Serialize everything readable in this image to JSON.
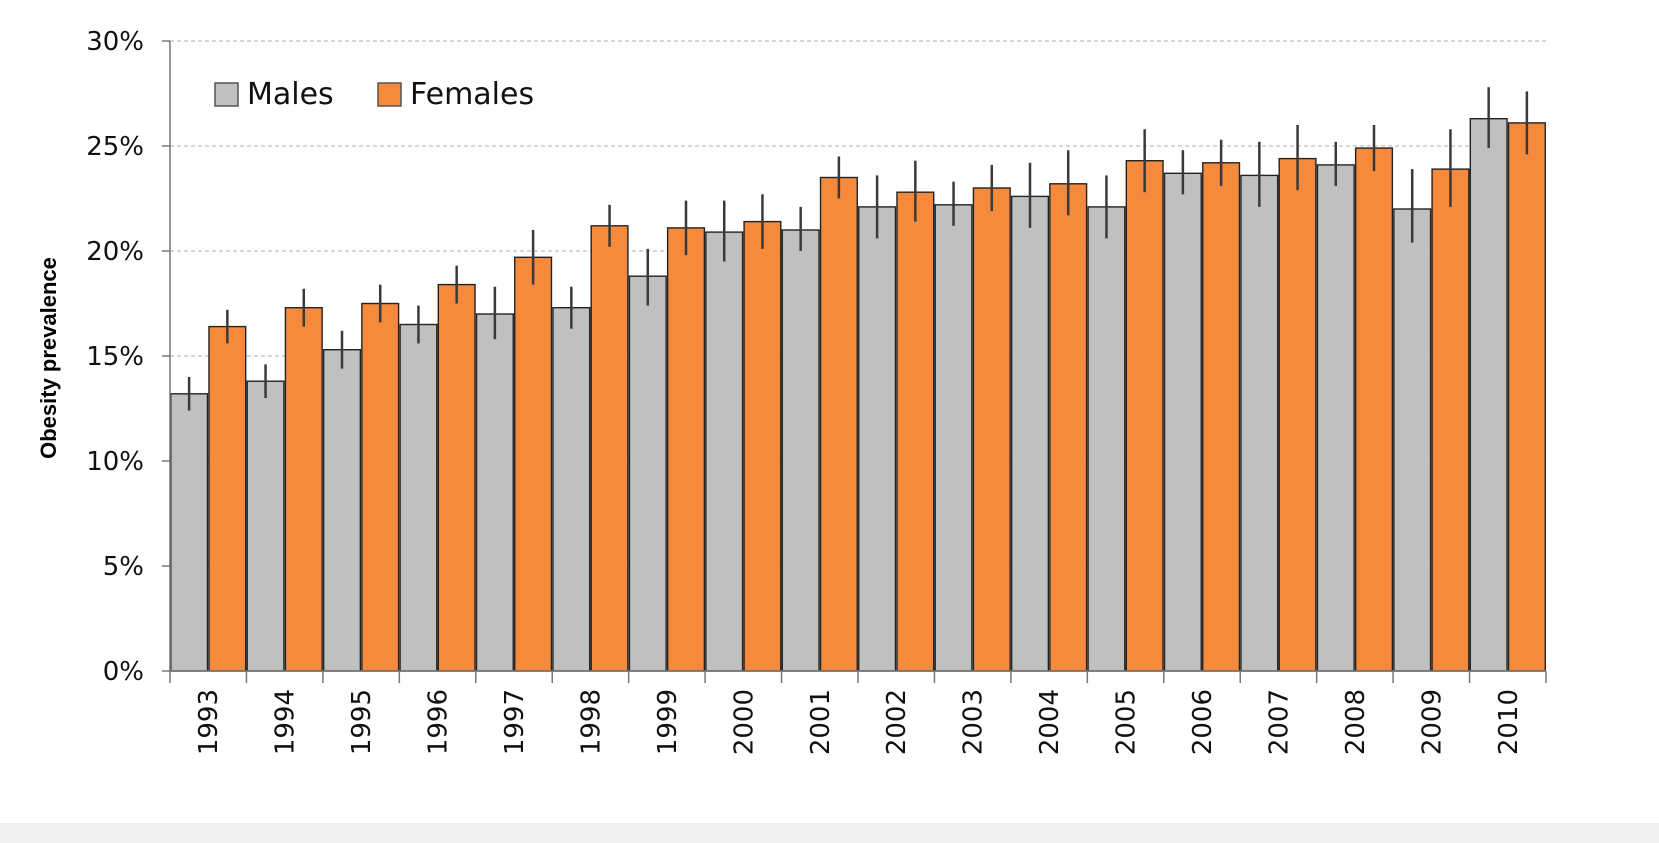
{
  "chart_data": {
    "type": "bar",
    "ylabel": "Obesity prevalence",
    "xlabel": "",
    "ylim": [
      0,
      30
    ],
    "yticks": [
      "0%",
      "5%",
      "10%",
      "15%",
      "20%",
      "25%",
      "30%"
    ],
    "categories": [
      "1993",
      "1994",
      "1995",
      "1996",
      "1997",
      "1998",
      "1999",
      "2000",
      "2001",
      "2002",
      "2003",
      "2004",
      "2005",
      "2006",
      "2007",
      "2008",
      "2009",
      "2010"
    ],
    "series": [
      {
        "name": "Males",
        "color": "#c0c0c0",
        "values": [
          13.2,
          13.8,
          15.3,
          16.5,
          17.0,
          17.3,
          18.8,
          20.9,
          21.0,
          22.1,
          22.2,
          22.6,
          22.1,
          23.7,
          23.6,
          24.1,
          22.0,
          26.3
        ],
        "error_low": [
          12.4,
          13.0,
          14.4,
          15.6,
          15.8,
          16.3,
          17.4,
          19.5,
          20.0,
          20.6,
          21.2,
          21.1,
          20.6,
          22.7,
          22.1,
          23.1,
          20.4,
          24.9
        ],
        "error_high": [
          14.0,
          14.6,
          16.2,
          17.4,
          18.3,
          18.3,
          20.1,
          22.4,
          22.1,
          23.6,
          23.3,
          24.2,
          23.6,
          24.8,
          25.2,
          25.2,
          23.9,
          27.8
        ]
      },
      {
        "name": "Females",
        "color": "#f58a3c",
        "values": [
          16.4,
          17.3,
          17.5,
          18.4,
          19.7,
          21.2,
          21.1,
          21.4,
          23.5,
          22.8,
          23.0,
          23.2,
          24.3,
          24.2,
          24.4,
          24.9,
          23.9,
          26.1
        ],
        "error_low": [
          15.6,
          16.4,
          16.6,
          17.5,
          18.4,
          20.2,
          19.8,
          20.1,
          22.5,
          21.4,
          21.9,
          21.7,
          22.8,
          23.1,
          22.9,
          23.8,
          22.1,
          24.6
        ],
        "error_high": [
          17.2,
          18.2,
          18.4,
          19.3,
          21.0,
          22.2,
          22.4,
          22.7,
          24.5,
          24.3,
          24.1,
          24.8,
          25.8,
          25.3,
          26.0,
          26.0,
          25.8,
          27.6
        ]
      }
    ],
    "grid": true,
    "legend_position": "top-left"
  }
}
